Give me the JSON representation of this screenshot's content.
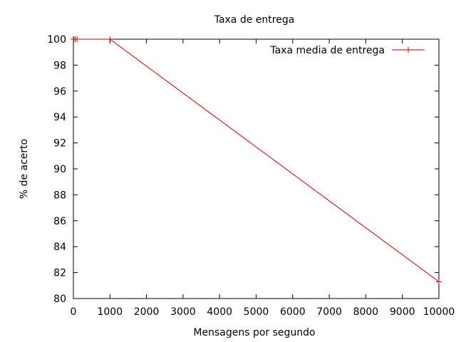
{
  "chart_data": {
    "type": "line",
    "title": "Taxa de entrega",
    "xlabel": "Mensagens por segundo",
    "ylabel": "% de acerto",
    "xlim": [
      0,
      10000
    ],
    "ylim": [
      80,
      100
    ],
    "x_ticks": [
      0,
      1000,
      2000,
      3000,
      4000,
      5000,
      6000,
      7000,
      8000,
      9000,
      10000
    ],
    "y_ticks": [
      80,
      82,
      84,
      86,
      88,
      90,
      92,
      94,
      96,
      98,
      100
    ],
    "grid": false,
    "legend_position": "top-right",
    "series": [
      {
        "name": "Taxa media de entrega",
        "color": "#cc0000",
        "marker": "plus",
        "x": [
          1,
          10,
          50,
          100,
          1000,
          10000
        ],
        "y": [
          100,
          100,
          100,
          100,
          100,
          81.3
        ]
      }
    ]
  }
}
